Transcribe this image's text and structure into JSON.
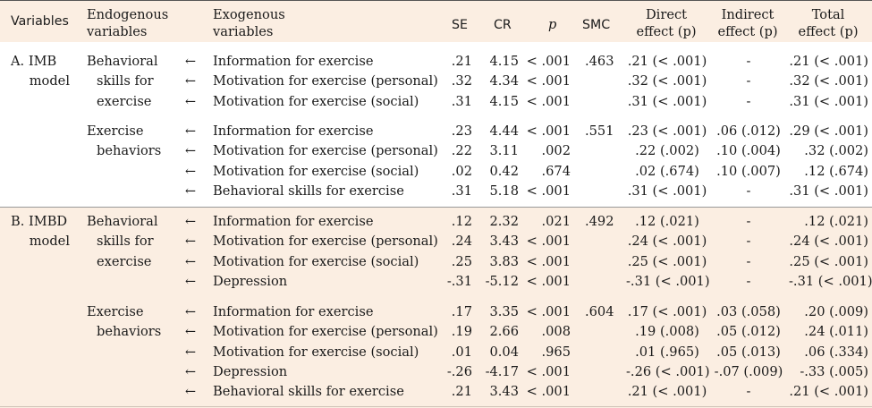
{
  "headers": {
    "variables": "Variables",
    "endogenous": [
      "Endogenous",
      "variables"
    ],
    "exogenous": [
      "Exogenous",
      "variables"
    ],
    "se": "SE",
    "cr": "CR",
    "p": "p",
    "smc": "SMC",
    "direct": [
      "Direct",
      "effect (p)"
    ],
    "indirect": [
      "Indirect",
      "effect (p)"
    ],
    "total": [
      "Total",
      "effect (p)"
    ]
  },
  "arrow": "←",
  "models": [
    {
      "label": [
        "A. IMB",
        "model"
      ],
      "groups": [
        {
          "endogenous": [
            "Behavioral",
            "skills for",
            "exercise"
          ],
          "smc": ".463",
          "rows": [
            {
              "exo": "Information for exercise",
              "se": ".21",
              "cr": "4.15",
              "p": "< .001",
              "direct": ".21 (< .001)",
              "indirect": "-",
              "total": ".21 (< .001)"
            },
            {
              "exo": "Motivation for exercise (personal)",
              "se": ".32",
              "cr": "4.34",
              "p": "< .001",
              "direct": ".32 (< .001)",
              "indirect": "-",
              "total": ".32 (< .001)"
            },
            {
              "exo": "Motivation for exercise (social)",
              "se": ".31",
              "cr": "4.15",
              "p": "< .001",
              "direct": ".31 (< .001)",
              "indirect": "-",
              "total": ".31 (< .001)"
            }
          ]
        },
        {
          "endogenous": [
            "Exercise",
            "behaviors"
          ],
          "smc": ".551",
          "rows": [
            {
              "exo": "Information for exercise",
              "se": ".23",
              "cr": "4.44",
              "p": "< .001",
              "direct": ".23 (< .001)",
              "indirect": ".06 (.012)",
              "total": ".29 (< .001)"
            },
            {
              "exo": "Motivation for exercise (personal)",
              "se": ".22",
              "cr": "3.11",
              "p": ".002",
              "direct": ".22 (.002)",
              "indirect": ".10 (.004)",
              "total": ".32 (.002)"
            },
            {
              "exo": "Motivation for exercise (social)",
              "se": ".02",
              "cr": "0.42",
              "p": ".674",
              "direct": ".02 (.674)",
              "indirect": ".10 (.007)",
              "total": ".12 (.674)"
            },
            {
              "exo": "Behavioral skills for exercise",
              "se": ".31",
              "cr": "5.18",
              "p": "< .001",
              "direct": ".31 (< .001)",
              "indirect": "-",
              "total": ".31 (< .001)"
            }
          ]
        }
      ]
    },
    {
      "label": [
        "B. IMBD",
        "model"
      ],
      "groups": [
        {
          "endogenous": [
            "Behavioral",
            "skills for",
            "exercise"
          ],
          "smc": ".492",
          "rows": [
            {
              "exo": "Information for exercise",
              "se": ".12",
              "cr": "2.32",
              "p": ".021",
              "direct": ".12 (.021)",
              "indirect": "-",
              "total": ".12 (.021)"
            },
            {
              "exo": "Motivation for exercise (personal)",
              "se": ".24",
              "cr": "3.43",
              "p": "< .001",
              "direct": ".24 (< .001)",
              "indirect": "-",
              "total": ".24 (< .001)"
            },
            {
              "exo": "Motivation for exercise (social)",
              "se": ".25",
              "cr": "3.83",
              "p": "< .001",
              "direct": ".25 (< .001)",
              "indirect": "-",
              "total": ".25 (< .001)"
            },
            {
              "exo": "Depression",
              "se": "-.31",
              "cr": "-5.12",
              "p": "< .001",
              "direct": "-.31 (< .001)",
              "indirect": "-",
              "total": "-.31 (< .001)"
            }
          ]
        },
        {
          "endogenous": [
            "Exercise",
            "behaviors"
          ],
          "smc": ".604",
          "rows": [
            {
              "exo": "Information for exercise",
              "se": ".17",
              "cr": "3.35",
              "p": "< .001",
              "direct": ".17 (< .001)",
              "indirect": ".03 (.058)",
              "total": ".20 (.009)"
            },
            {
              "exo": "Motivation for exercise (personal)",
              "se": ".19",
              "cr": "2.66",
              "p": ".008",
              "direct": ".19 (.008)",
              "indirect": ".05 (.012)",
              "total": ".24 (.011)"
            },
            {
              "exo": "Motivation for exercise (social)",
              "se": ".01",
              "cr": "0.04",
              "p": ".965",
              "direct": ".01 (.965)",
              "indirect": ".05 (.013)",
              "total": ".06 (.334)"
            },
            {
              "exo": "Depression",
              "se": "-.26",
              "cr": "-4.17",
              "p": "< .001",
              "direct": "-.26 (< .001)",
              "indirect": "-.07 (.009)",
              "total": "-.33 (.005)"
            },
            {
              "exo": "Behavioral skills for exercise",
              "se": ".21",
              "cr": "3.43",
              "p": "< .001",
              "direct": ".21 (< .001)",
              "indirect": "-",
              "total": ".21 (< .001)"
            }
          ]
        }
      ]
    }
  ]
}
